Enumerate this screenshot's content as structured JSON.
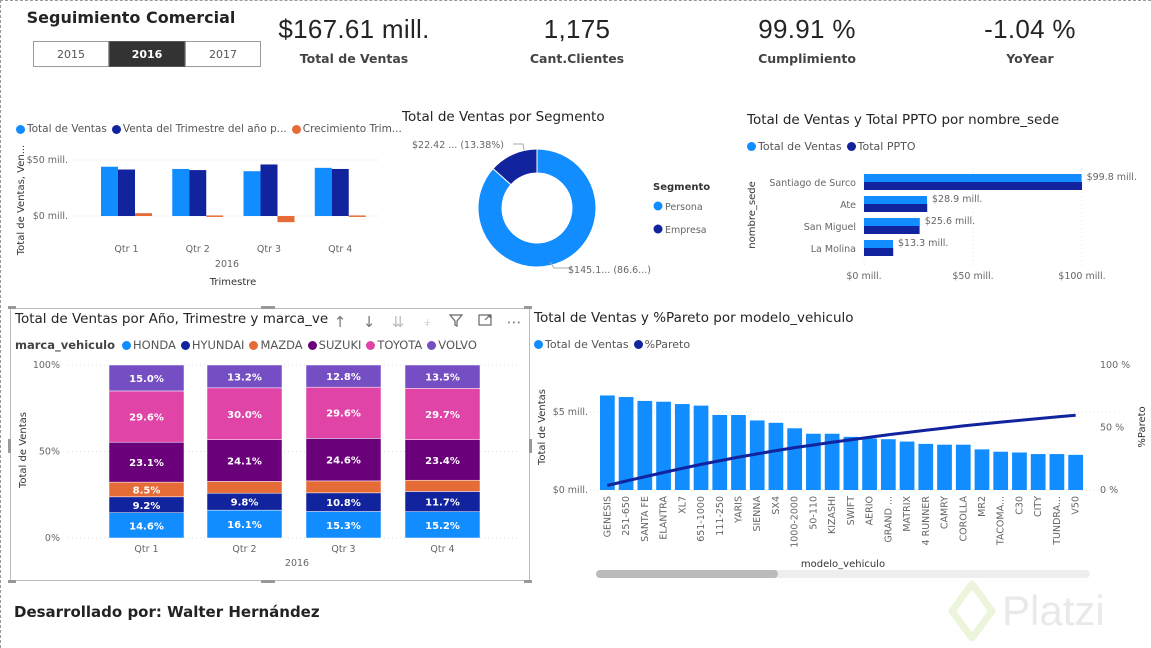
{
  "header": {
    "title": "Seguimiento Comercial",
    "year_slicer": {
      "options": [
        "2015",
        "2016",
        "2017"
      ],
      "selected": "2016"
    }
  },
  "kpis": [
    {
      "value": "$167.61 mill.",
      "label": "Total de Ventas"
    },
    {
      "value": "1,175",
      "label": "Cant.Clientes"
    },
    {
      "value": "99.91 %",
      "label": "Cumplimiento"
    },
    {
      "value": "-1.04 %",
      "label": "YoYear"
    }
  ],
  "colors": {
    "light_blue": "#118DFF",
    "dark_blue": "#12239E",
    "orange": "#E66C37",
    "purple_dark": "#6B007B",
    "pink": "#E044A7",
    "violet": "#744EC2"
  },
  "chart_data": [
    {
      "id": "quarterly",
      "type": "bar",
      "title": "",
      "legend": [
        "Total de Ventas",
        "Venta del Trimestre del año p...",
        "Crecimiento Trim..."
      ],
      "legend_position": "top-left",
      "categories": [
        "Qtr 1",
        "Qtr 2",
        "Qtr 3",
        "Qtr 4"
      ],
      "group_label": "2016",
      "xlabel": "Trimestre",
      "ylabel": "Total de Ventas, Ven...",
      "yticks": [
        "$0 mill.",
        "$50 mill."
      ],
      "ylim": [
        -10,
        55
      ],
      "series": [
        {
          "name": "Total de Ventas",
          "values": [
            44,
            42,
            40,
            43
          ]
        },
        {
          "name": "Venta del Trimestre del año pasado",
          "values": [
            41.5,
            41,
            46,
            42
          ]
        },
        {
          "name": "Crecimiento Trimestral",
          "values": [
            2.5,
            0.5,
            -5.5,
            0.5
          ]
        }
      ],
      "grid": true
    },
    {
      "id": "segment",
      "type": "pie",
      "title": "Total de Ventas por Segmento",
      "legend_title": "Segmento",
      "legend_position": "right",
      "categories": [
        "Persona",
        "Empresa"
      ],
      "values": [
        145.19,
        22.42
      ],
      "percents": [
        86.62,
        13.38
      ],
      "data_labels": [
        "$145.1... (86.6...)",
        "$22.42 ... (13.38%)"
      ],
      "donut": true
    },
    {
      "id": "sede",
      "type": "bar",
      "orientation": "horizontal",
      "title": "Total de Ventas y Total PPTO por nombre_sede",
      "legend": [
        "Total de Ventas",
        "Total PPTO"
      ],
      "legend_position": "top-left",
      "categories": [
        "Santiago de Surco",
        "Ate",
        "San Miguel",
        "La Molina"
      ],
      "ylabel": "nombre_sede",
      "xticks": [
        "$0 mill.",
        "$50 mill.",
        "$100 mill."
      ],
      "xlim": [
        0,
        100
      ],
      "series": [
        {
          "name": "Total de Ventas",
          "values": [
            99.8,
            28.9,
            25.6,
            13.3
          ]
        },
        {
          "name": "Total PPTO",
          "values": [
            100,
            29,
            25.5,
            13.4
          ]
        }
      ],
      "data_labels": [
        "$99.8 mill.",
        "$28.9 mill.",
        "$25.6 mill.",
        "$13.3 mill."
      ],
      "grid": true
    },
    {
      "id": "brand",
      "type": "bar",
      "stacked": "100%",
      "title": "Total de Ventas por Año, Trimestre y marca_ve",
      "legend_title": "marca_vehiculo",
      "legend": [
        "HONDA",
        "HYUNDAI",
        "MAZDA",
        "SUZUKI",
        "TOYOTA",
        "VOLVO"
      ],
      "legend_position": "top-left",
      "categories": [
        "Qtr 1",
        "Qtr 2",
        "Qtr 3",
        "Qtr 4"
      ],
      "group_label": "2016",
      "ylabel": "Total de Ventas",
      "yticks": [
        "0%",
        "50%",
        "100%"
      ],
      "series": [
        {
          "name": "HONDA",
          "values": [
            14.6,
            16.1,
            15.3,
            15.2
          ]
        },
        {
          "name": "HYUNDAI",
          "values": [
            9.2,
            9.8,
            10.8,
            11.7
          ]
        },
        {
          "name": "MAZDA",
          "values": [
            8.5,
            6.8,
            6.9,
            6.5
          ]
        },
        {
          "name": "SUZUKI",
          "values": [
            23.1,
            24.1,
            24.6,
            23.4
          ]
        },
        {
          "name": "TOYOTA",
          "values": [
            29.6,
            30.0,
            29.6,
            29.7
          ]
        },
        {
          "name": "VOLVO",
          "values": [
            15.0,
            13.2,
            12.8,
            13.5
          ]
        }
      ],
      "label_visible": [
        [
          true,
          true,
          true,
          true
        ],
        [
          true,
          true,
          true,
          true
        ],
        [
          true,
          false,
          false,
          false
        ],
        [
          true,
          true,
          true,
          true
        ],
        [
          true,
          true,
          true,
          true
        ],
        [
          true,
          true,
          true,
          true
        ]
      ]
    },
    {
      "id": "pareto",
      "type": "bar",
      "title": "Total de Ventas y %Pareto por modelo_vehiculo",
      "legend": [
        "Total de Ventas",
        "%Pareto"
      ],
      "legend_position": "top-left",
      "xlabel": "modelo_vehiculo",
      "ylabel": "Total de Ventas",
      "y2label": "%Pareto",
      "yticks": [
        "$0 mill.",
        "$5 mill."
      ],
      "y2ticks": [
        "0 %",
        "50 %",
        "100 %"
      ],
      "ylim": [
        0,
        8
      ],
      "y2lim": [
        0,
        100
      ],
      "categories": [
        "GENESIS",
        "251-650",
        "SANTA FE",
        "ELANTRA",
        "XL7",
        "651-1000",
        "111-250",
        "YARIS",
        "SIENNA",
        "SX4",
        "1000-2000",
        "50-110",
        "KIZASHI",
        "SWIFT",
        "AERIO",
        "GRAND ...",
        "MATRIX",
        "4 RUNNER",
        "CAMRY",
        "COROLLA",
        "MR2",
        "TACOMA...",
        "C30",
        "CITY",
        "TUNDRA...",
        "V50"
      ],
      "series": [
        {
          "name": "Total de Ventas",
          "values": [
            6.05,
            5.95,
            5.7,
            5.65,
            5.5,
            5.4,
            4.8,
            4.8,
            4.45,
            4.3,
            3.95,
            3.6,
            3.6,
            3.4,
            3.3,
            3.25,
            3.1,
            2.95,
            2.9,
            2.9,
            2.6,
            2.45,
            2.4,
            2.3,
            2.3,
            2.25
          ]
        },
        {
          "name": "%Pareto",
          "values": [
            3.6,
            7.2,
            10.6,
            14.0,
            17.3,
            20.5,
            23.4,
            26.3,
            28.9,
            31.5,
            33.9,
            36.0,
            38.2,
            40.2,
            42.2,
            44.2,
            46.0,
            47.8,
            49.5,
            51.3,
            52.8,
            54.3,
            55.7,
            57.1,
            58.5,
            59.8
          ]
        }
      ],
      "grid": true
    }
  ],
  "brand_toolbar": {
    "icons": [
      "arrow-up-icon",
      "arrow-down-icon",
      "double-arrow-down-icon",
      "expand-hierarchy-icon",
      "filter-icon",
      "focus-mode-icon",
      "more-options-icon"
    ]
  },
  "footer": {
    "credit": "Desarrollado por: Walter Hernández",
    "watermark": "Platzi"
  }
}
